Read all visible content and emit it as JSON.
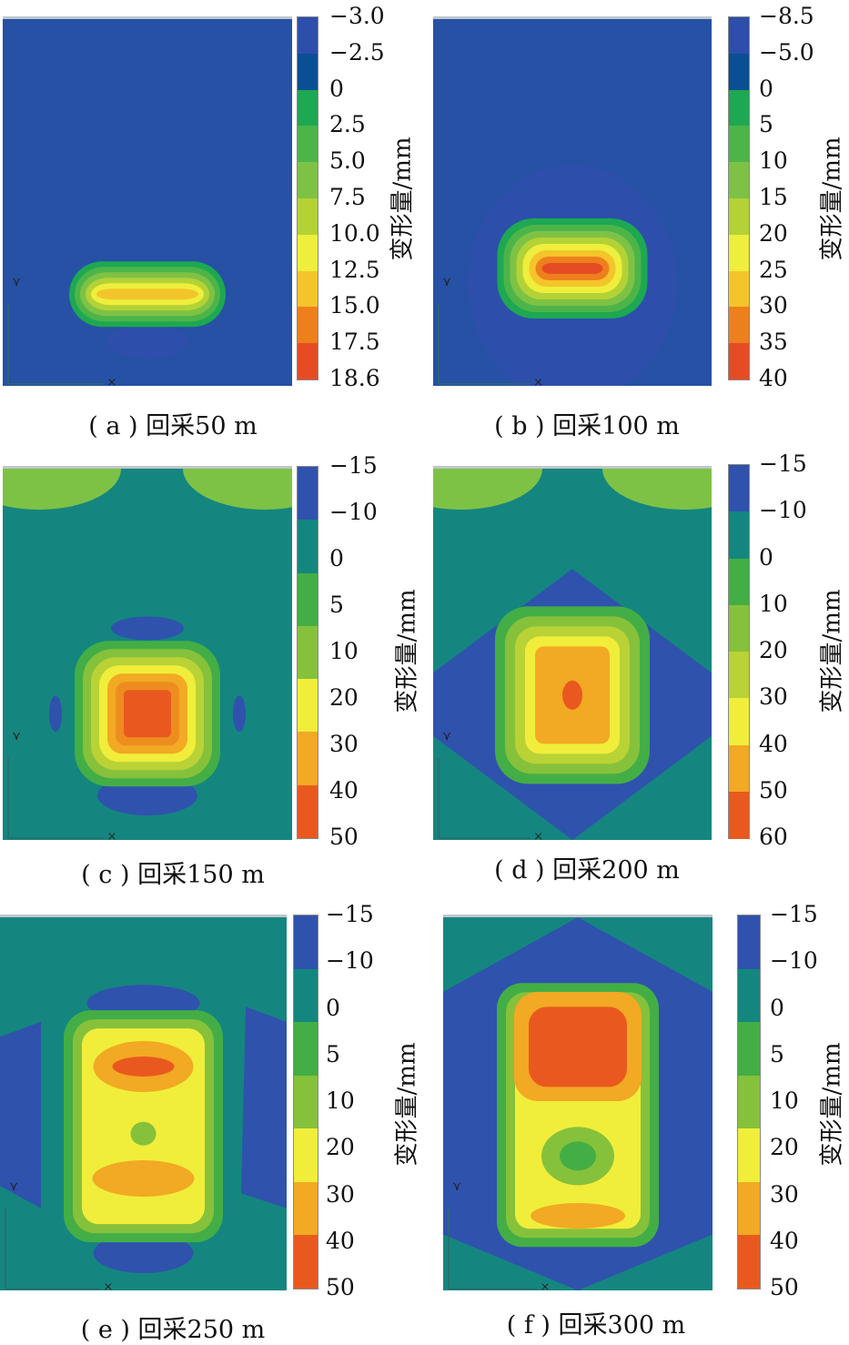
{
  "chart_data": [
    {
      "type": "heatmap",
      "caption": "( a ) 回采50 m",
      "colorbar_label": "变形量/mm",
      "colorbar_ticks": [
        "−3.0",
        "−2.5",
        "0",
        "2.5",
        "5.0",
        "7.5",
        "10.0",
        "12.5",
        "15.0",
        "17.5",
        "18.6"
      ],
      "colors": [
        "#2d4fab",
        "#0a4f93",
        "#1da851",
        "#4db44a",
        "#7ec245",
        "#b3d236",
        "#eeee3c",
        "#f4c52a",
        "#ee7f1d",
        "#e64c24"
      ],
      "background": "#2651a5",
      "mining_distance_m": 50
    },
    {
      "type": "heatmap",
      "caption": "( b ) 回采100 m",
      "colorbar_label": "变形量/mm",
      "colorbar_ticks": [
        "−8.5",
        "−5.0",
        "0",
        "5",
        "10",
        "15",
        "20",
        "25",
        "30",
        "35",
        "40"
      ],
      "colors": [
        "#2d4fab",
        "#0a4f93",
        "#1da851",
        "#4db44a",
        "#7ec245",
        "#b3d236",
        "#eeee3c",
        "#f4c52a",
        "#ee7f1d",
        "#e64c24"
      ],
      "background": "#2651a5",
      "mining_distance_m": 100
    },
    {
      "type": "heatmap",
      "caption": "( c ) 回采150 m",
      "colorbar_label": "变形量/mm",
      "colorbar_ticks": [
        "−15",
        "−10",
        "0",
        "5",
        "10",
        "20",
        "30",
        "40",
        "50"
      ],
      "colors": [
        "#2f52ad",
        "#13877f",
        "#43ae45",
        "#86c13b",
        "#f0ee3a",
        "#f2a923",
        "#e9591f"
      ],
      "background": "#14867f",
      "mining_distance_m": 150
    },
    {
      "type": "heatmap",
      "caption": "( d ) 回采200 m",
      "colorbar_label": "变形量/mm",
      "colorbar_ticks": [
        "−15",
        "−10",
        "0",
        "10",
        "20",
        "30",
        "40",
        "50",
        "60"
      ],
      "colors": [
        "#2f52ad",
        "#13877f",
        "#43ae45",
        "#86c13b",
        "#b9d236",
        "#f0ee3a",
        "#f2a923",
        "#e9591f"
      ],
      "background": "#14867f",
      "mining_distance_m": 200
    },
    {
      "type": "heatmap",
      "caption": "( e ) 回采250 m",
      "colorbar_label": "变形量/mm",
      "colorbar_ticks": [
        "−15",
        "−10",
        "0",
        "5",
        "10",
        "20",
        "30",
        "40",
        "50"
      ],
      "colors": [
        "#2f52ad",
        "#13877f",
        "#43ae45",
        "#86c13b",
        "#f0ee3a",
        "#f2a923",
        "#e9591f"
      ],
      "background": "#14867f",
      "mining_distance_m": 250
    },
    {
      "type": "heatmap",
      "caption": "( f ) 回采300 m",
      "colorbar_label": "变形量/mm",
      "colorbar_ticks": [
        "−15",
        "−10",
        "0",
        "5",
        "10",
        "20",
        "30",
        "40",
        "50"
      ],
      "colors": [
        "#2f52ad",
        "#13877f",
        "#43ae45",
        "#86c13b",
        "#f0ee3a",
        "#f2a923",
        "#e9591f"
      ],
      "background": "#14867f",
      "mining_distance_m": 300
    }
  ]
}
